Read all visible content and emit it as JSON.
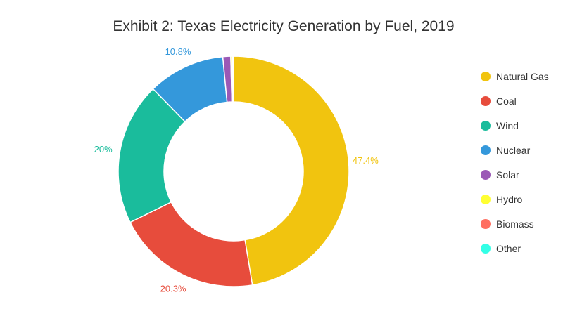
{
  "chart_data": {
    "type": "pie",
    "variant": "donut",
    "title": "Exhibit 2: Texas Electricity Generation by Fuel, 2019",
    "categories": [
      "Natural Gas",
      "Coal",
      "Wind",
      "Nuclear",
      "Solar",
      "Hydro",
      "Biomass",
      "Other"
    ],
    "values": [
      47.4,
      20.3,
      20.0,
      10.8,
      1.1,
      0.2,
      0.1,
      0.1
    ],
    "value_labels": [
      "47.4%",
      "20.3%",
      "20%",
      "10.8%",
      "",
      "",
      "",
      ""
    ],
    "colors": [
      "#f1c40f",
      "#e74c3c",
      "#1abc9c",
      "#3498db",
      "#9b59b6",
      "#ffff33",
      "#ff6f61",
      "#33ffe6"
    ],
    "legend_position": "right"
  }
}
